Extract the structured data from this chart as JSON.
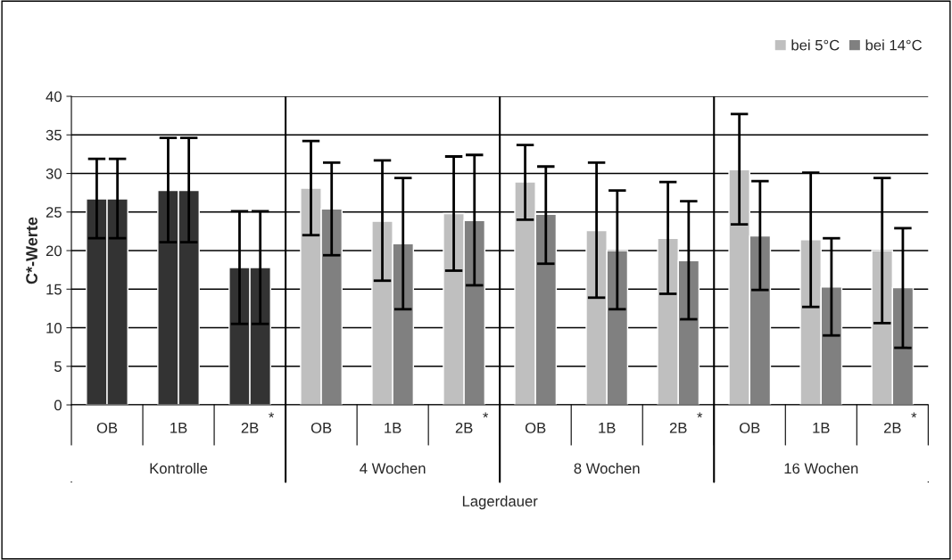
{
  "chart_data": {
    "type": "bar",
    "xlabel": "Lagerdauer",
    "ylabel": "C*-Werte",
    "categories": [
      "OB",
      "1B",
      "2B",
      "OB",
      "1B",
      "2B",
      "OB",
      "1B",
      "2B",
      "OB",
      "1B",
      "2B"
    ],
    "series": [
      {
        "name": "bei 5°C",
        "color": "#bfbfbf",
        "colors": [
          "#333333",
          "#333333",
          "#333333",
          "#bfbfbf",
          "#bfbfbf",
          "#bfbfbf",
          "#bfbfbf",
          "#bfbfbf",
          "#bfbfbf",
          "#bfbfbf",
          "#bfbfbf",
          "#bfbfbf"
        ],
        "values": [
          26.7,
          27.8,
          17.8,
          28.1,
          23.8,
          24.8,
          28.9,
          22.6,
          21.6,
          30.5,
          21.4,
          20.0
        ],
        "errors": [
          [
            21.6,
            31.9
          ],
          [
            21.1,
            34.6
          ],
          [
            10.5,
            25.1
          ],
          [
            22.0,
            34.2
          ],
          [
            16.1,
            31.7
          ],
          [
            17.4,
            32.2
          ],
          [
            24.0,
            33.7
          ],
          [
            13.9,
            31.4
          ],
          [
            14.4,
            28.9
          ],
          [
            23.4,
            37.7
          ],
          [
            12.7,
            30.1
          ],
          [
            10.6,
            29.4
          ]
        ]
      },
      {
        "name": "bei 14°C",
        "color": "#808080",
        "colors": [
          "#333333",
          "#333333",
          "#333333",
          "#808080",
          "#808080",
          "#808080",
          "#808080",
          "#808080",
          "#808080",
          "#808080",
          "#808080",
          "#808080"
        ],
        "values": [
          26.7,
          27.8,
          17.8,
          25.4,
          20.9,
          23.9,
          24.7,
          20.0,
          18.7,
          21.9,
          15.3,
          15.2
        ],
        "errors": [
          [
            21.6,
            31.9
          ],
          [
            21.1,
            34.6
          ],
          [
            10.5,
            25.1
          ],
          [
            19.4,
            31.4
          ],
          [
            12.4,
            29.4
          ],
          [
            15.5,
            32.4
          ],
          [
            18.3,
            30.9
          ],
          [
            12.4,
            27.8
          ],
          [
            11.1,
            26.4
          ],
          [
            14.9,
            29.0
          ],
          [
            9.0,
            21.6
          ],
          [
            7.4,
            22.9
          ]
        ]
      }
    ],
    "annotations": [
      "Kontrolle",
      "4 Wochen",
      "8 Wochen",
      "16 Wochen",
      "*",
      "*",
      "*",
      "*"
    ],
    "ylim": [
      0,
      40
    ],
    "yticks": [
      0,
      5,
      10,
      15,
      20,
      25,
      30,
      35,
      40
    ],
    "grid": "y",
    "legend": "top right"
  }
}
